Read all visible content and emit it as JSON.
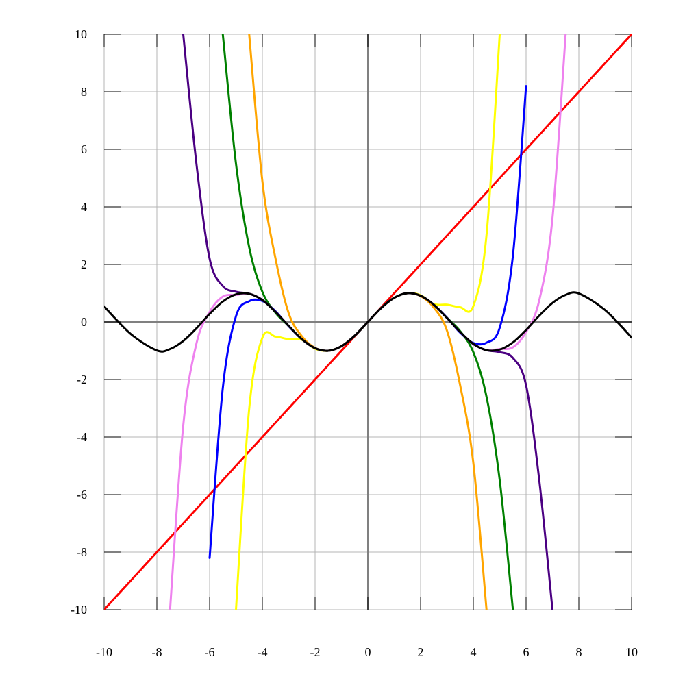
{
  "chart_data": {
    "type": "line",
    "title": "",
    "xlabel": "",
    "ylabel": "",
    "xlim": [
      -10,
      10
    ],
    "ylim": [
      -10,
      10
    ],
    "grid": true,
    "x_ticks": [
      -10,
      -8,
      -6,
      -4,
      -2,
      0,
      2,
      4,
      6,
      8,
      10
    ],
    "y_ticks": [
      -10,
      -8,
      -6,
      -4,
      -2,
      0,
      2,
      4,
      6,
      8,
      10
    ],
    "x_tick_labels": [
      "-10",
      "-8",
      "-6",
      "-4",
      "-2",
      "0",
      "2",
      "4",
      "6",
      "8",
      "10"
    ],
    "y_tick_labels": [
      "-10",
      "-8",
      "-6",
      "-4",
      "-2",
      "0",
      "2",
      "4",
      "6",
      "8",
      "10"
    ],
    "sample_x": [
      -10,
      -9,
      -8,
      -7.5,
      -7,
      -6.5,
      -6,
      -5.5,
      -5,
      -4.5,
      -4,
      -3.5,
      -3,
      -2.5,
      -2,
      -1.5,
      -1,
      -0.5,
      0,
      0.5,
      1,
      1.5,
      2,
      2.5,
      3,
      3.5,
      4,
      4.5,
      5,
      5.5,
      6,
      6.5,
      7,
      7.5,
      8,
      9,
      10
    ],
    "series": [
      {
        "color": "#ff0000",
        "values": [
          -10,
          -9,
          -8,
          -7.5,
          -7,
          -6.5,
          -6,
          -5.5,
          -5,
          -4.5,
          -4,
          -3.5,
          -3,
          -2.5,
          -2,
          -1.5,
          -1,
          -0.5,
          0,
          0.5,
          1,
          1.5,
          2,
          2.5,
          3,
          3.5,
          4,
          4.5,
          5,
          5.5,
          6,
          6.5,
          7,
          7.5,
          8,
          9,
          10
        ]
      },
      {
        "color": "#ffff00",
        "values": [
          null,
          null,
          null,
          null,
          null,
          null,
          null,
          null,
          -10,
          -3.02,
          -0.55,
          -0.51,
          -0.6,
          -0.62,
          -0.93,
          -1,
          -0.84,
          -0.48,
          0,
          0.48,
          0.84,
          1,
          0.93,
          0.62,
          0.6,
          0.51,
          0.55,
          3.02,
          10,
          null,
          null,
          null,
          null,
          null,
          null,
          null,
          null
        ]
      },
      {
        "color": "#0000ff",
        "values": [
          null,
          null,
          null,
          null,
          null,
          null,
          -8.2,
          -2.3,
          0.2,
          0.72,
          0.73,
          0.37,
          -0.15,
          -0.6,
          -0.91,
          -1,
          -0.84,
          -0.48,
          0,
          0.48,
          0.84,
          1,
          0.91,
          0.6,
          0.15,
          -0.37,
          -0.73,
          -0.72,
          -0.2,
          2.3,
          8.2,
          null,
          null,
          null,
          null,
          null,
          null
        ]
      },
      {
        "color": "#ee82ee",
        "values": [
          null,
          null,
          null,
          -10,
          -3.6,
          -0.75,
          0.35,
          0.88,
          0.94,
          0.98,
          0.76,
          0.35,
          -0.14,
          -0.6,
          -0.91,
          -1,
          -0.84,
          -0.48,
          0,
          0.48,
          0.84,
          1,
          0.91,
          0.6,
          0.14,
          -0.35,
          -0.76,
          -0.98,
          -0.94,
          -0.88,
          -0.35,
          0.75,
          3.6,
          10,
          null,
          null,
          null
        ]
      },
      {
        "color": "#008000",
        "values": [
          null,
          null,
          null,
          null,
          null,
          null,
          null,
          10,
          5.5,
          2.6,
          1.05,
          0.32,
          -0.14,
          -0.6,
          -0.91,
          -1,
          -0.84,
          -0.48,
          0,
          0.48,
          0.84,
          1,
          0.91,
          0.6,
          0.14,
          -0.32,
          -1.05,
          -2.6,
          -5.5,
          -10,
          null,
          null,
          null,
          null,
          null,
          null,
          null
        ]
      },
      {
        "color": "#ffa500",
        "values": [
          null,
          null,
          null,
          null,
          null,
          null,
          null,
          null,
          null,
          10,
          4.9,
          2.2,
          0.3,
          -0.5,
          -0.9,
          -1,
          -0.84,
          -0.48,
          0,
          0.48,
          0.84,
          1,
          0.9,
          0.5,
          -0.3,
          -2.2,
          -4.9,
          -10,
          null,
          null,
          null,
          null,
          null,
          null,
          null,
          null,
          null
        ]
      },
      {
        "color": "#4b0082",
        "values": [
          null,
          null,
          null,
          null,
          10,
          5.5,
          2.2,
          1.25,
          1.05,
          0.98,
          0.77,
          0.35,
          -0.14,
          -0.6,
          -0.91,
          -1,
          -0.84,
          -0.48,
          0,
          0.48,
          0.84,
          1,
          0.91,
          0.6,
          0.14,
          -0.35,
          -0.77,
          -0.98,
          -1.05,
          -1.25,
          -2.2,
          -5.5,
          -10,
          null,
          null,
          null,
          null
        ]
      },
      {
        "color": "#000000",
        "values": [
          0.54,
          -0.41,
          -0.99,
          -0.94,
          -0.66,
          -0.22,
          0.28,
          0.71,
          0.96,
          0.98,
          0.76,
          0.35,
          -0.14,
          -0.6,
          -0.91,
          -1,
          -0.84,
          -0.48,
          0,
          0.48,
          0.84,
          1,
          0.91,
          0.6,
          0.14,
          -0.35,
          -0.76,
          -0.98,
          -0.96,
          -0.71,
          -0.28,
          0.22,
          0.66,
          0.94,
          0.99,
          0.41,
          -0.54
        ]
      }
    ]
  }
}
